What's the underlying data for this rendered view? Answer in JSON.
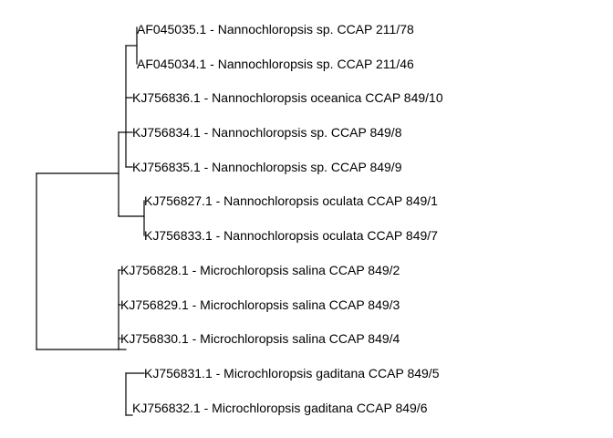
{
  "tree": {
    "line_color": "#000000",
    "text_color": "#000000",
    "leaves": [
      "AF045035.1 - Nannochloropsis sp. CCAP 211/78",
      "AF045034.1 - Nannochloropsis sp. CCAP 211/46",
      "KJ756836.1 - Nannochloropsis oceanica CCAP 849/10",
      "KJ756834.1 - Nannochloropsis sp. CCAP 849/8",
      "KJ756835.1 - Nannochloropsis sp. CCAP 849/9",
      "KJ756827.1 - Nannochloropsis oculata CCAP 849/1",
      "KJ756833.1 - Nannochloropsis oculata CCAP 849/7",
      "KJ756828.1 - Microchloropsis salina CCAP 849/2",
      "KJ756829.1 - Microchloropsis salina CCAP 849/3",
      "KJ756830.1 - Microchloropsis salina CCAP 849/4",
      "KJ756831.1 - Microchloropsis gaditana CCAP 849/5",
      "KJ756832.1 - Microchloropsis gaditana CCAP 849/6"
    ]
  }
}
